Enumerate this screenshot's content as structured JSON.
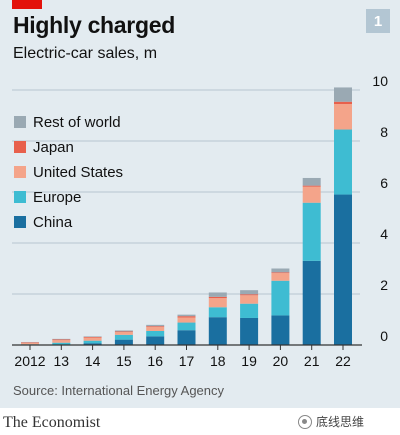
{
  "header": {
    "title": "Highly charged",
    "subtitle": "Electric-car sales, m",
    "figure_number": "1"
  },
  "footer": {
    "source": "Source: International Energy Agency",
    "publication": "The Economist",
    "watermark": "底线思维"
  },
  "colors": {
    "China": "#1a6fa0",
    "Europe": "#3ebcd2",
    "United States": "#f4a48a",
    "Japan": "#e8604c",
    "Rest of world": "#9aa9b3",
    "grid": "#b7c6cf",
    "panel": "#e3ebf0",
    "red_tag": "#e3120b"
  },
  "chart_data": {
    "type": "bar",
    "stacked": true,
    "title": "Highly charged",
    "subtitle": "Electric-car sales, m",
    "categories": [
      "2012",
      "13",
      "14",
      "15",
      "16",
      "17",
      "18",
      "19",
      "20",
      "21",
      "22"
    ],
    "series": [
      {
        "name": "China",
        "values": [
          0.01,
          0.02,
          0.07,
          0.21,
          0.34,
          0.58,
          1.09,
          1.06,
          1.16,
          3.3,
          5.9
        ]
      },
      {
        "name": "Europe",
        "values": [
          0.02,
          0.07,
          0.1,
          0.19,
          0.21,
          0.3,
          0.39,
          0.56,
          1.36,
          2.28,
          2.55
        ]
      },
      {
        "name": "United States",
        "values": [
          0.05,
          0.1,
          0.12,
          0.11,
          0.16,
          0.2,
          0.36,
          0.33,
          0.3,
          0.63,
          1.0
        ]
      },
      {
        "name": "Japan",
        "values": [
          0.02,
          0.03,
          0.03,
          0.02,
          0.03,
          0.05,
          0.05,
          0.04,
          0.03,
          0.04,
          0.09
        ]
      },
      {
        "name": "Rest of world",
        "values": [
          0.01,
          0.02,
          0.02,
          0.04,
          0.05,
          0.06,
          0.17,
          0.16,
          0.15,
          0.3,
          0.56
        ]
      }
    ],
    "legend_order": [
      "Rest of world",
      "Japan",
      "United States",
      "Europe",
      "China"
    ],
    "ylim": [
      0,
      10
    ],
    "yticks": [
      0,
      2,
      4,
      6,
      8,
      10
    ],
    "y_axis_side": "right",
    "grid": true,
    "legend_position": "top-left"
  }
}
